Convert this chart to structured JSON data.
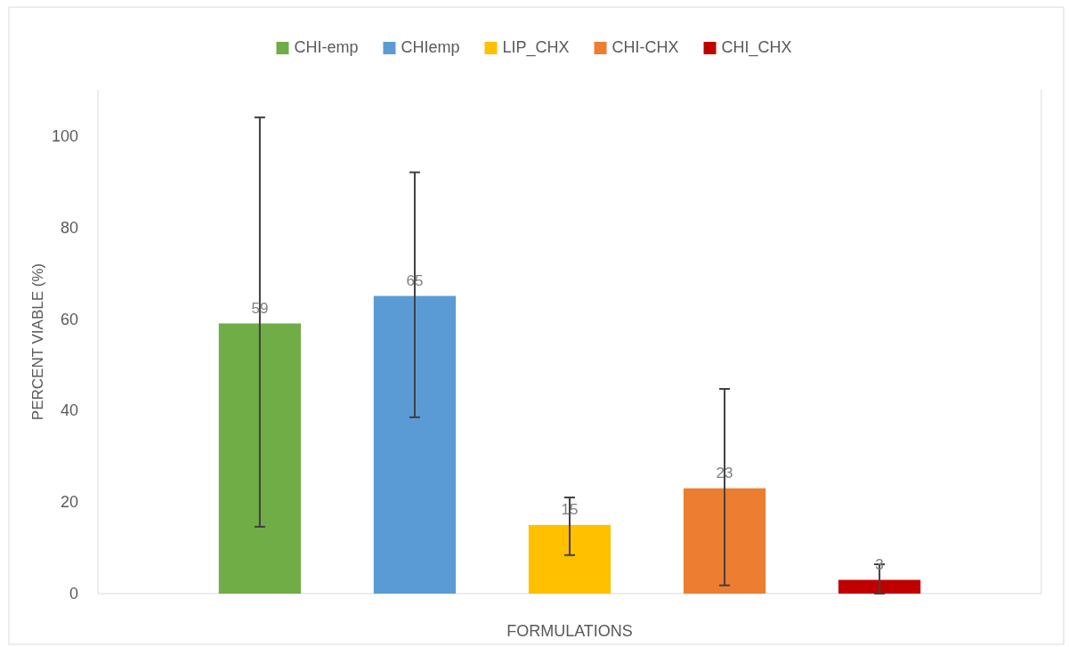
{
  "chart_data": {
    "type": "bar",
    "xlabel": "FORMULATIONS",
    "ylabel": "PERCENT VIABLE (%)",
    "categories": [
      null
    ],
    "series": [
      {
        "name": "CHI-emp",
        "color": "#70ad47",
        "values": [
          59
        ],
        "errors": [
          [
            14.6,
            104
          ]
        ]
      },
      {
        "name": "CHIemp",
        "color": "#5b9bd5",
        "values": [
          65
        ],
        "errors": [
          [
            38.5,
            92
          ]
        ]
      },
      {
        "name": "LIP_CHX",
        "color": "#ffc000",
        "values": [
          15
        ],
        "errors": [
          [
            8.4,
            21
          ]
        ]
      },
      {
        "name": "CHI-CHX",
        "color": "#ed7d31",
        "values": [
          23
        ],
        "errors": [
          [
            1.8,
            44.7
          ]
        ]
      },
      {
        "name": "CHI_CHX",
        "color": "#c00000",
        "values": [
          3
        ],
        "errors": [
          [
            0,
            6.4
          ]
        ]
      }
    ],
    "ylim": [
      0,
      110
    ],
    "yticks": [
      0,
      20,
      40,
      60,
      80,
      100
    ],
    "grid": false,
    "legend": "top",
    "data_labels": true
  }
}
